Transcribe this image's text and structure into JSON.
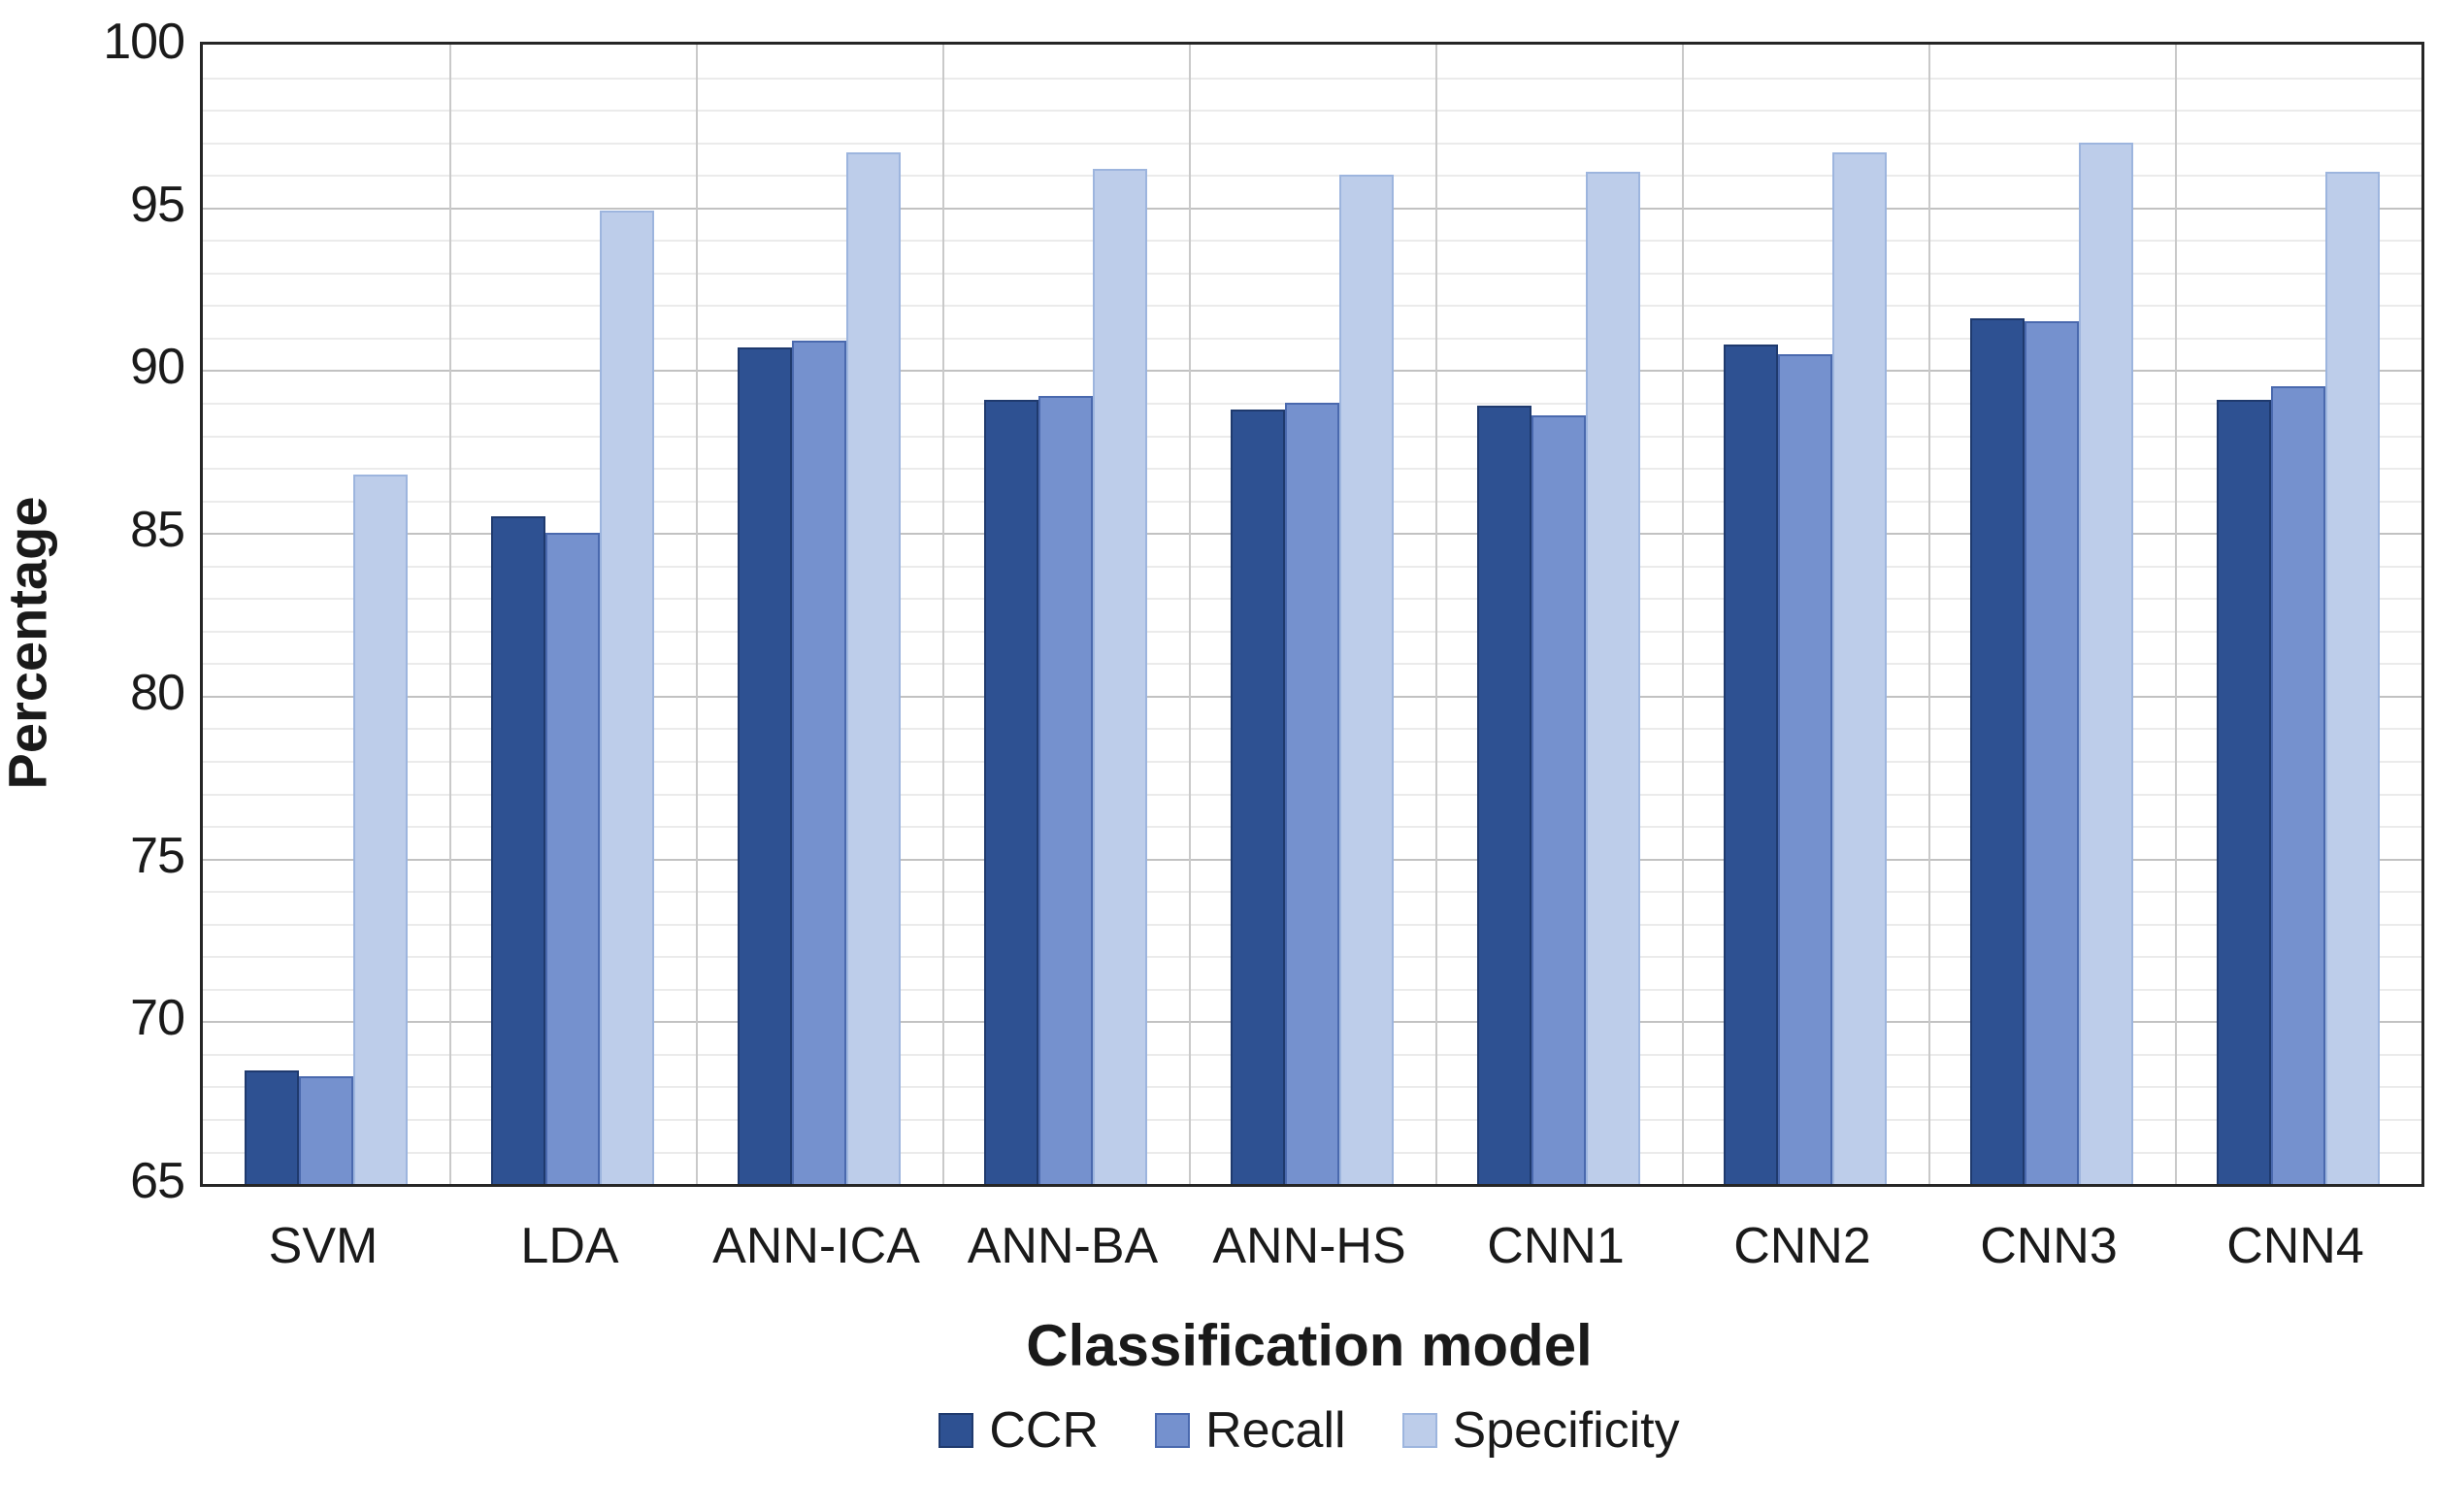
{
  "chart_data": {
    "type": "bar",
    "title": "",
    "xlabel": "Classification model",
    "ylabel": "Percentage",
    "ylim": [
      65,
      100
    ],
    "ytick_step": 5,
    "minor_tick_step": 1,
    "grid": true,
    "legend_position": "bottom",
    "categories": [
      "SVM",
      "LDA",
      "ANN-ICA",
      "ANN-BA",
      "ANN-HS",
      "CNN1",
      "CNN2",
      "CNN3",
      "CNN4"
    ],
    "series": [
      {
        "name": "CCR",
        "color": "#2e5192",
        "border": "#1f3a6e",
        "values": [
          68.5,
          85.5,
          90.7,
          89.1,
          88.8,
          88.9,
          90.8,
          91.6,
          89.1
        ]
      },
      {
        "name": "Recall",
        "color": "#7591ce",
        "border": "#4a69ae",
        "values": [
          68.3,
          85.0,
          90.9,
          89.2,
          89.0,
          88.6,
          90.5,
          91.5,
          89.5
        ]
      },
      {
        "name": "Specificity",
        "color": "#bdcdea",
        "border": "#9db5de",
        "values": [
          86.8,
          94.9,
          96.7,
          96.2,
          96.0,
          96.1,
          96.7,
          97.0,
          96.1
        ]
      }
    ]
  },
  "axis": {
    "y_ticks": [
      "65",
      "70",
      "75",
      "80",
      "85",
      "90",
      "95",
      "100"
    ]
  },
  "colors": {
    "background": "#ffffff",
    "axis_line": "#262626",
    "grid_major": "#c2c2c2",
    "grid_minor": "#ebebeb",
    "text": "#1a1a1a"
  }
}
